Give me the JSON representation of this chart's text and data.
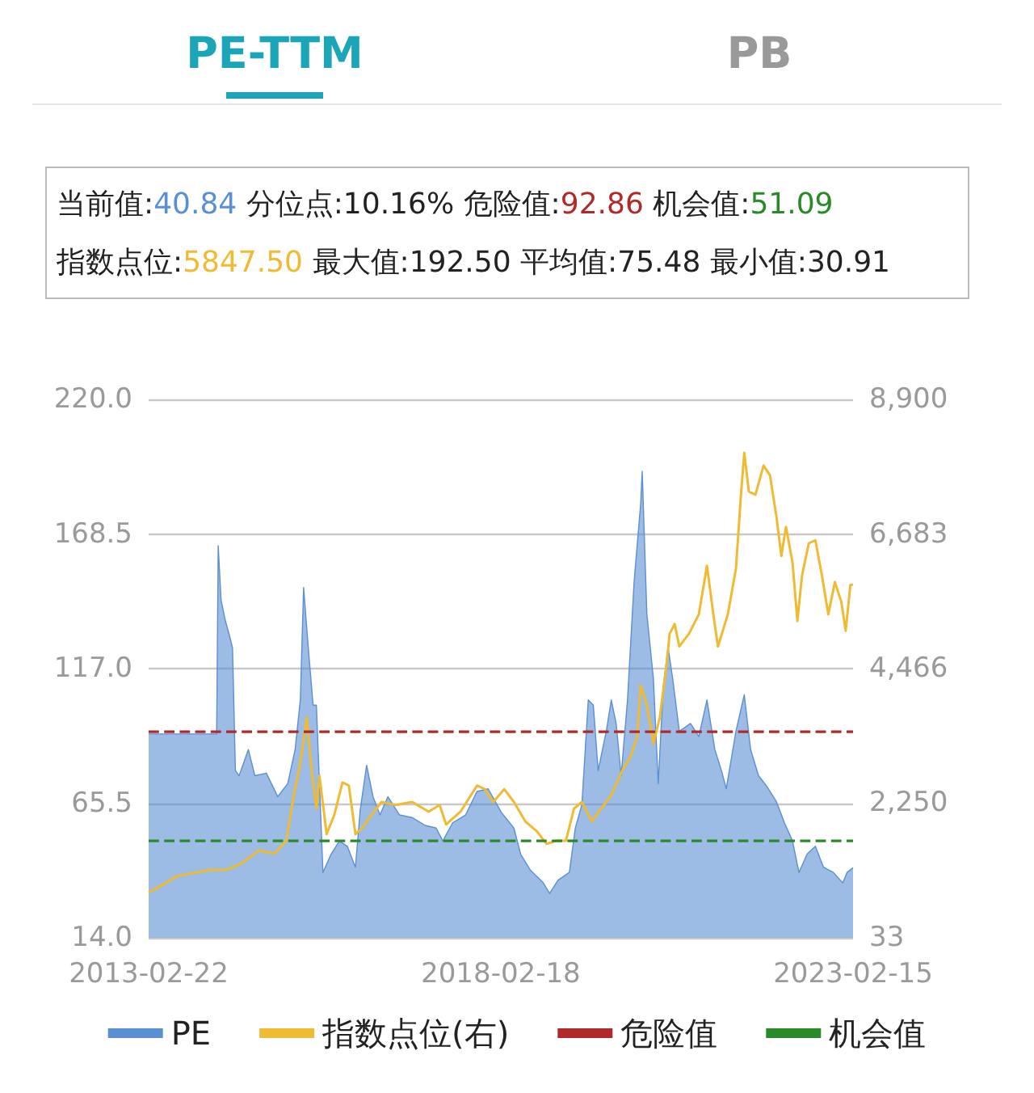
{
  "chart_data": {
    "type": "area",
    "title": "PE-TTM",
    "annotations": [
      "PB",
      "当前值:40.84",
      "分位点:10.16%",
      "危险值:92.86",
      "机会值:51.09",
      "指数点位:5847.50",
      "最大值:192.50",
      "平均值:75.48",
      "最小值:30.91"
    ],
    "series": [
      {
        "name": "PE",
        "color": "#5b8fd3",
        "x": [
          "2013-02-22",
          "2014-02-09",
          "2014-02-17",
          "2014-03-04",
          "2014-03-27",
          "2014-04-15",
          "2014-05-02",
          "2014-05-17",
          "2014-06-05",
          "2014-07-23",
          "2014-08-26",
          "2014-10-24",
          "2014-12-22",
          "2015-02-12",
          "2015-03-22",
          "2015-04-18",
          "2015-05-05",
          "2015-05-29",
          "2015-06-23",
          "2015-07-10",
          "2015-08-13",
          "2015-09-24",
          "2015-11-06",
          "2015-12-17",
          "2016-01-28",
          "2016-02-22",
          "2016-03-26",
          "2016-04-28",
          "2016-06-03",
          "2016-07-14",
          "2016-09-12",
          "2016-11-17",
          "2017-01-23",
          "2017-03-21",
          "2017-04-24",
          "2017-06-14",
          "2017-08-20",
          "2017-10-18",
          "2017-12-15",
          "2018-02-21",
          "2018-04-27",
          "2018-06-01",
          "2018-07-20",
          "2018-09-26",
          "2018-10-29",
          "2018-12-11",
          "2019-02-08",
          "2019-03-11",
          "2019-04-14",
          "2019-05-17",
          "2019-06-12",
          "2019-07-07",
          "2019-08-18",
          "2019-09-13",
          "2019-10-08",
          "2019-11-03",
          "2019-12-06",
          "2020-01-09",
          "2020-02-12",
          "2020-02-20",
          "2020-03-15",
          "2020-04-18",
          "2020-05-13",
          "2020-06-08",
          "2020-07-03",
          "2020-07-27",
          "2020-08-30",
          "2020-10-27",
          "2020-12-09",
          "2021-01-20",
          "2021-03-02",
          "2021-04-05",
          "2021-04-30",
          "2021-06-19",
          "2021-08-01",
          "2021-09-03",
          "2021-10-14",
          "2021-11-25",
          "2022-01-15",
          "2022-02-25",
          "2022-04-08",
          "2022-05-11",
          "2022-06-22",
          "2022-08-04",
          "2022-09-15",
          "2022-11-05",
          "2022-12-24",
          "2023-01-15",
          "2023-02-15"
        ],
        "values": [
          92,
          92,
          164,
          143,
          135,
          130,
          125,
          78,
          76,
          86,
          76,
          77,
          68,
          73,
          86,
          105,
          148,
          125,
          103,
          103,
          39,
          46,
          51,
          49,
          41,
          63,
          80,
          68,
          61,
          68,
          61,
          60,
          57,
          56,
          51,
          58,
          61,
          70,
          71,
          62,
          56,
          46,
          40,
          35,
          31,
          36,
          39,
          56,
          65,
          105,
          103,
          78,
          93,
          105,
          96,
          76,
          105,
          150,
          180,
          192.5,
          138,
          113,
          73,
          110,
          125,
          113,
          93,
          96,
          91,
          105,
          86,
          78,
          71,
          93,
          107,
          86,
          76,
          72,
          66,
          58,
          51,
          39,
          46,
          49,
          41,
          39,
          35,
          39,
          40.8
        ]
      },
      {
        "name": "指数点位(右)",
        "type": "line",
        "axis": "y2",
        "color": "#eebb33",
        "x": [
          "2013-02-22",
          "2013-04-27",
          "2013-07-20",
          "2013-10-13",
          "2014-01-06",
          "2014-03-27",
          "2014-06-20",
          "2014-09-13",
          "2014-12-06",
          "2015-02-04",
          "2015-03-15",
          "2015-04-18",
          "2015-05-21",
          "2015-06-15",
          "2015-07-10",
          "2015-07-26",
          "2015-09-01",
          "2015-10-11",
          "2015-11-22",
          "2015-12-25",
          "2016-01-28",
          "2016-03-02",
          "2016-04-21",
          "2016-06-11",
          "2016-08-25",
          "2016-11-17",
          "2017-02-10",
          "2017-04-08",
          "2017-05-11",
          "2017-07-25",
          "2017-10-18",
          "2017-11-28",
          "2018-01-10",
          "2018-03-08",
          "2018-04-27",
          "2018-06-25",
          "2018-08-23",
          "2018-10-13",
          "2018-12-03",
          "2019-01-21",
          "2019-03-04",
          "2019-04-14",
          "2019-06-04",
          "2019-07-23",
          "2019-09-13",
          "2019-11-11",
          "2019-12-22",
          "2020-01-25",
          "2020-02-12",
          "2020-03-15",
          "2020-04-18",
          "2020-05-21",
          "2020-06-24",
          "2020-07-11",
          "2020-08-06",
          "2020-08-30",
          "2020-10-19",
          "2020-12-09",
          "2021-01-20",
          "2021-02-22",
          "2021-03-18",
          "2021-05-08",
          "2021-06-19",
          "2021-07-14",
          "2021-08-01",
          "2021-08-25",
          "2021-09-28",
          "2021-11-09",
          "2021-12-12",
          "2022-01-15",
          "2022-02-09",
          "2022-03-05",
          "2022-04-08",
          "2022-05-03",
          "2022-05-27",
          "2022-07-01",
          "2022-08-04",
          "2022-09-07",
          "2022-10-10",
          "2022-11-13",
          "2022-12-16",
          "2023-01-08",
          "2023-02-01",
          "2023-02-15"
        ],
        "values": [
          780,
          890,
          1050,
          1100,
          1150,
          1150,
          1260,
          1470,
          1420,
          1630,
          2380,
          2910,
          3660,
          2800,
          2160,
          2700,
          1740,
          2060,
          2590,
          2540,
          1740,
          1840,
          2060,
          2270,
          2220,
          2270,
          2110,
          2220,
          1900,
          2110,
          2540,
          2480,
          2270,
          2480,
          2270,
          1950,
          1790,
          1580,
          1630,
          1630,
          2160,
          2270,
          1950,
          2160,
          2380,
          2800,
          3020,
          3340,
          4190,
          3870,
          3230,
          3660,
          4510,
          5040,
          5200,
          4830,
          5040,
          5360,
          6160,
          5360,
          4830,
          5360,
          6110,
          7280,
          8020,
          7380,
          7330,
          7810,
          7650,
          6960,
          6320,
          6800,
          6210,
          5250,
          6000,
          6530,
          6580,
          6000,
          5360,
          5890,
          5570,
          5090,
          5840,
          5850
        ]
      }
    ],
    "xlim": [
      "2013-02-22",
      "2023-02-15"
    ],
    "xticks": [
      "2013-02-22",
      "2018-02-18",
      "2023-02-15"
    ],
    "ylim": [
      14,
      220
    ],
    "yticks": [
      {
        "value": 14,
        "label": "14.0"
      },
      {
        "value": 65.5,
        "label": "65.5"
      },
      {
        "value": 117,
        "label": "117.0"
      },
      {
        "value": 168.5,
        "label": "168.5"
      },
      {
        "value": 220,
        "label": "220.0"
      }
    ],
    "y2lim": [
      33,
      8900
    ],
    "y2ticks": [
      33,
      {
        "value": 2250,
        "label": "2,250"
      },
      {
        "value": 4466,
        "label": "4,466"
      },
      {
        "value": 6683,
        "label": "6,683"
      },
      {
        "value": 8900,
        "label": "8,900"
      }
    ],
    "ref_lines": [
      {
        "axis": "y",
        "value": 92.86,
        "label": "危险值",
        "color": "#b02a2a",
        "line_style": "dashed"
      },
      {
        "axis": "y",
        "value": 51.09,
        "label": "机会值",
        "color": "#2a8a2a",
        "line_style": "dashed"
      }
    ],
    "grid": "y",
    "legend": "bottom"
  }
}
